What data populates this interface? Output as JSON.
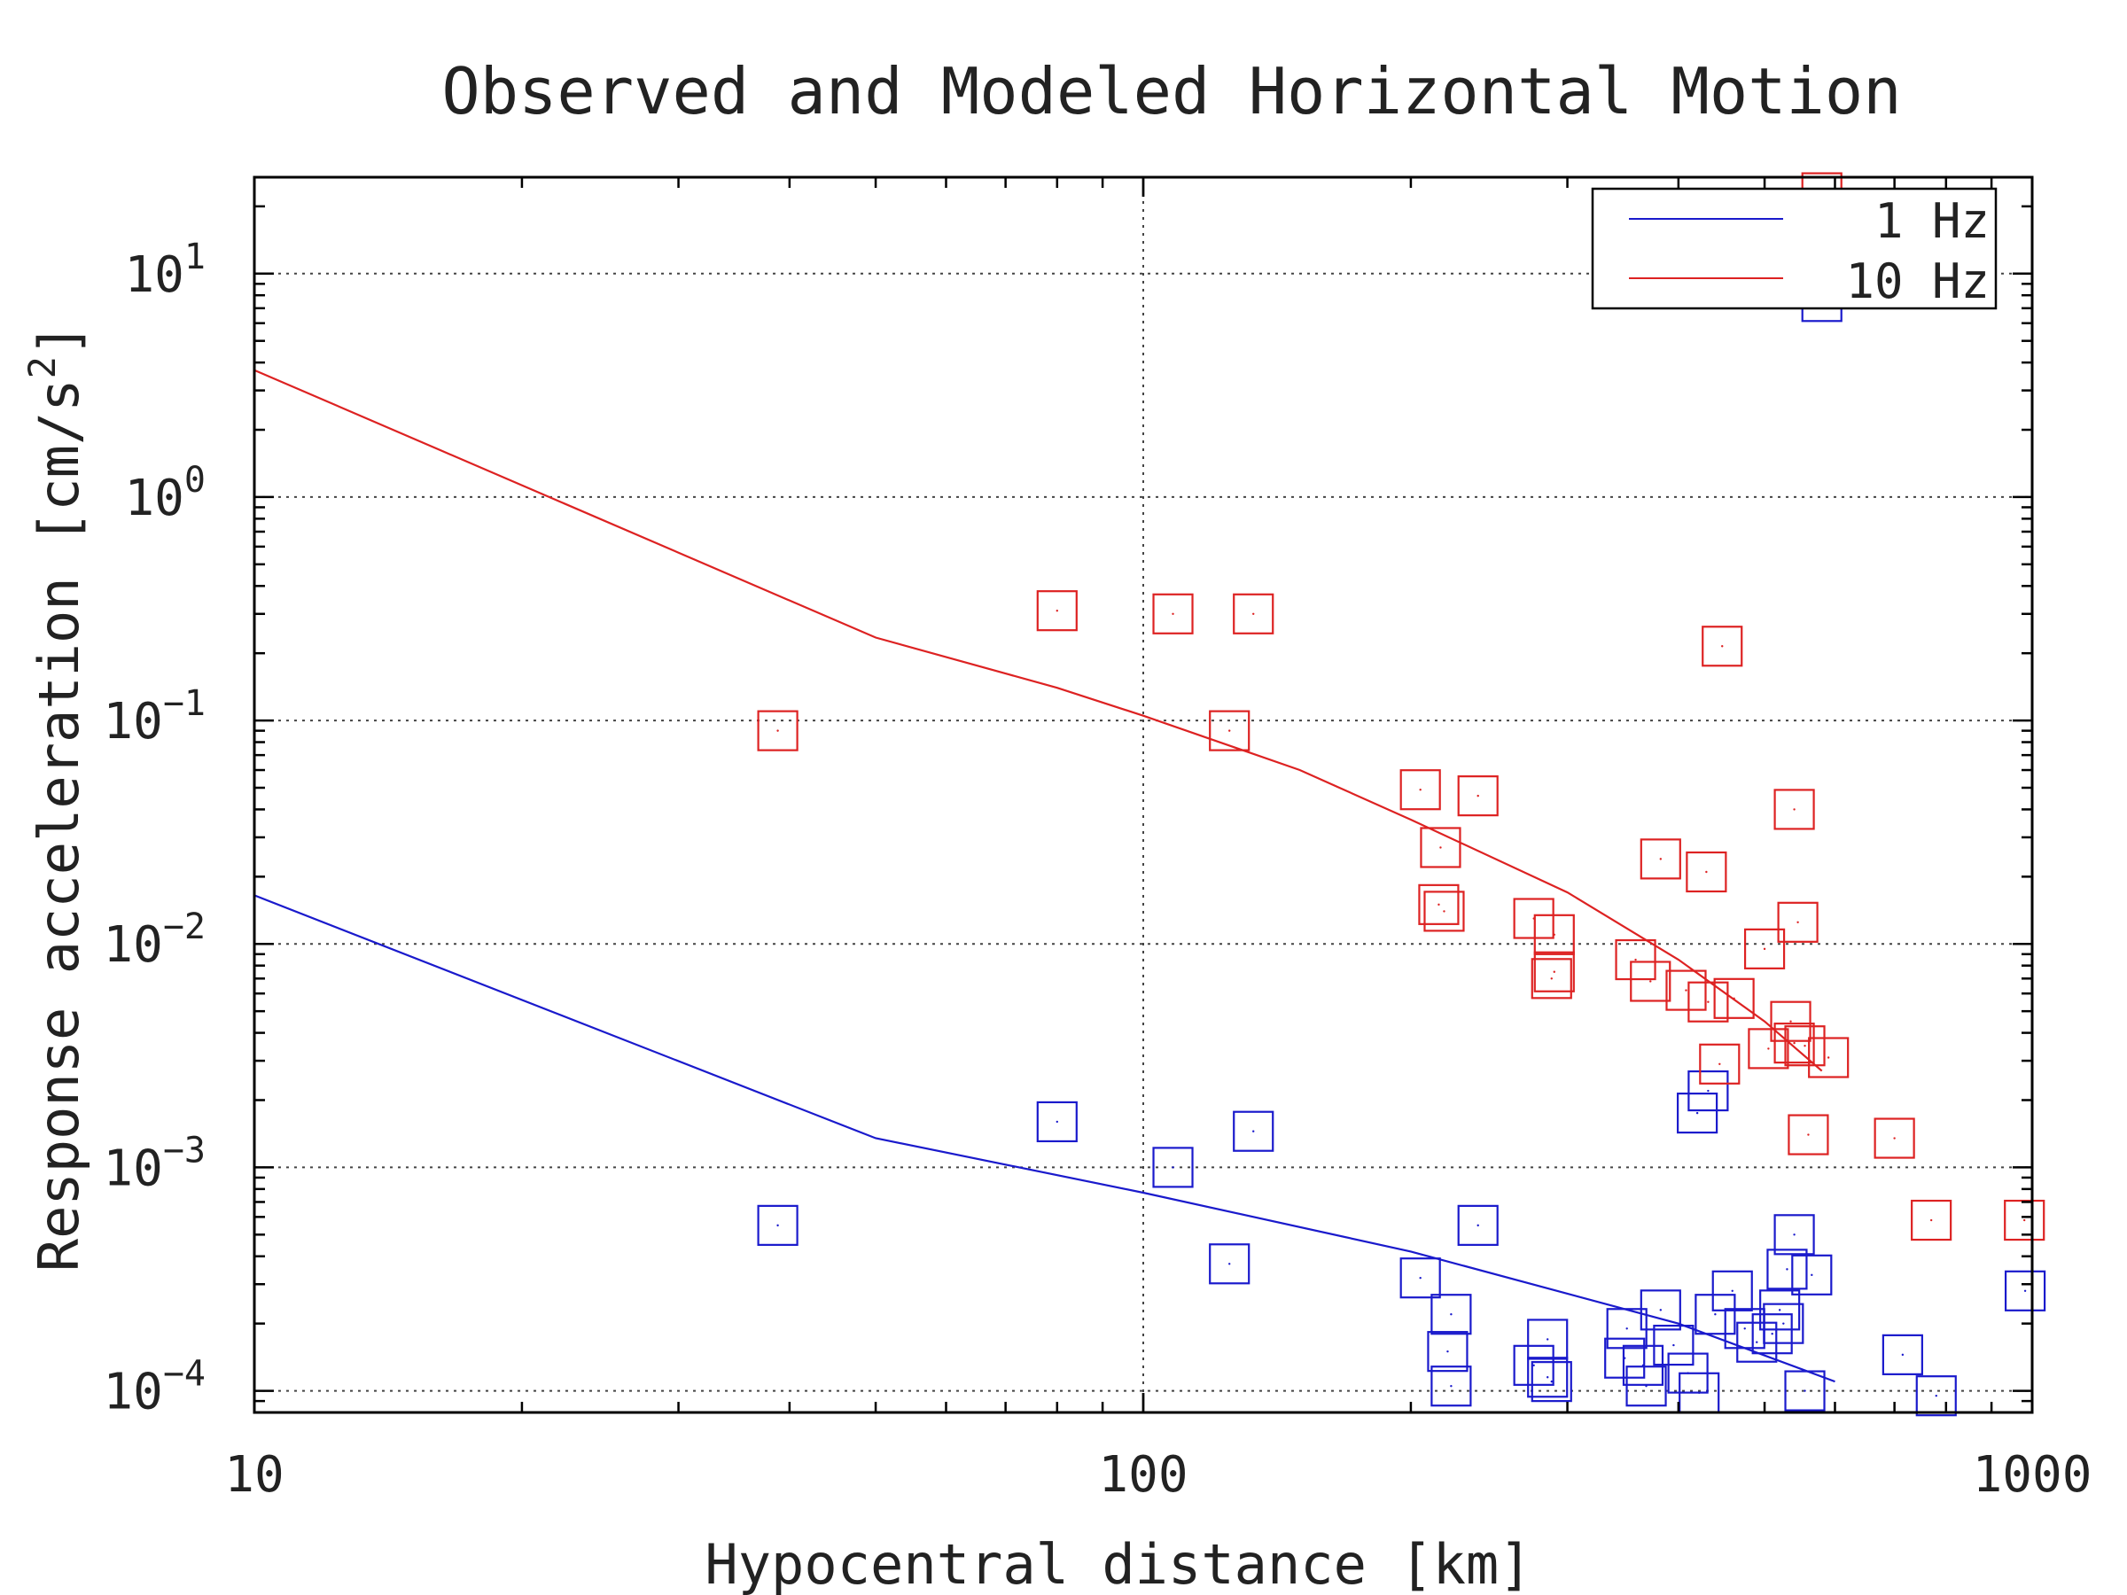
{
  "chart_data": {
    "type": "scatter",
    "title": "Observed and Modeled Horizontal Motion",
    "xlabel": "Hypocentral distance [km]",
    "ylabel": "Response acceleration [cm/s",
    "ylabel_superscript": "2",
    "ylabel_suffix": "]",
    "xscale": "log",
    "yscale": "log",
    "xlim": [
      10,
      1000
    ],
    "ylim": [
      8e-05,
      27
    ],
    "x_ticks": [
      {
        "value": 10,
        "label": "10"
      },
      {
        "value": 100,
        "label": "100"
      },
      {
        "value": 1000,
        "label": "1000"
      }
    ],
    "y_ticks": [
      {
        "value": 0.0001,
        "base": "10",
        "exp": "−4"
      },
      {
        "value": 0.001,
        "base": "10",
        "exp": "−3"
      },
      {
        "value": 0.01,
        "base": "10",
        "exp": "−2"
      },
      {
        "value": 0.1,
        "base": "10",
        "exp": "−1"
      },
      {
        "value": 1,
        "base": "10",
        "exp": "0"
      },
      {
        "value": 10,
        "base": "10",
        "exp": "1"
      }
    ],
    "grid": true,
    "legend_position": "top-right",
    "series": [
      {
        "name": "1 Hz",
        "color": "#1a1acc",
        "model_line": [
          [
            10,
            0.0165
          ],
          [
            50,
            0.00135
          ],
          [
            100,
            0.00077
          ],
          [
            200,
            0.00042
          ],
          [
            400,
            0.0002
          ],
          [
            600,
            0.00011
          ]
        ],
        "observations": [
          [
            38.8,
            0.00055
          ],
          [
            80,
            0.0016
          ],
          [
            108,
            0.001
          ],
          [
            133,
            0.00145
          ],
          [
            125,
            0.00037
          ],
          [
            238,
            0.00055
          ],
          [
            205,
            0.00032
          ],
          [
            222,
            0.00022
          ],
          [
            220,
            0.00015
          ],
          [
            222,
            0.000105
          ],
          [
            275,
            0.00013
          ],
          [
            285,
            0.00017
          ],
          [
            285,
            0.000115
          ],
          [
            288,
            0.00011
          ],
          [
            350,
            0.00019
          ],
          [
            348,
            0.00014
          ],
          [
            365,
            0.00013
          ],
          [
            368,
            0.000105
          ],
          [
            382,
            0.00023
          ],
          [
            395,
            0.00016
          ],
          [
            410,
            0.00012
          ],
          [
            422,
            9.8e-05
          ],
          [
            420,
            0.00175
          ],
          [
            432,
            0.0022
          ],
          [
            440,
            0.00022
          ],
          [
            460,
            0.00028
          ],
          [
            475,
            0.00019
          ],
          [
            490,
            0.000165
          ],
          [
            510,
            0.00018
          ],
          [
            520,
            0.00023
          ],
          [
            525,
            0.0002
          ],
          [
            530,
            0.00035
          ],
          [
            540,
            0.0005
          ],
          [
            565,
            0.00033
          ],
          [
            555,
            0.0001
          ],
          [
            715,
            0.000145
          ],
          [
            780,
            9.5e-05
          ],
          [
            982,
            0.00028
          ],
          [
            580,
            7.5
          ]
        ]
      },
      {
        "name": "10 Hz",
        "color": "#dd2222",
        "model_line": [
          [
            10,
            3.7
          ],
          [
            50,
            0.235
          ],
          [
            80,
            0.14
          ],
          [
            100,
            0.105
          ],
          [
            150,
            0.06
          ],
          [
            200,
            0.036
          ],
          [
            300,
            0.017
          ],
          [
            400,
            0.0085
          ],
          [
            500,
            0.0045
          ],
          [
            580,
            0.0027
          ]
        ],
        "observations": [
          [
            38.8,
            0.09
          ],
          [
            80,
            0.31
          ],
          [
            108,
            0.3
          ],
          [
            133,
            0.3
          ],
          [
            125,
            0.09
          ],
          [
            205,
            0.049
          ],
          [
            238,
            0.046
          ],
          [
            216,
            0.027
          ],
          [
            215,
            0.015
          ],
          [
            218,
            0.014
          ],
          [
            275,
            0.013
          ],
          [
            290,
            0.011
          ],
          [
            290,
            0.0075
          ],
          [
            288,
            0.007
          ],
          [
            358,
            0.0085
          ],
          [
            372,
            0.0068
          ],
          [
            382,
            0.024
          ],
          [
            408,
            0.0062
          ],
          [
            430,
            0.021
          ],
          [
            432,
            0.0055
          ],
          [
            462,
            0.0057
          ],
          [
            445,
            0.0029
          ],
          [
            448,
            0.215
          ],
          [
            500,
            0.0095
          ],
          [
            505,
            0.0034
          ],
          [
            540,
            0.0036
          ],
          [
            535,
            0.0045
          ],
          [
            540,
            0.04
          ],
          [
            545,
            0.0125
          ],
          [
            555,
            0.0035
          ],
          [
            590,
            0.0031
          ],
          [
            560,
            0.0014
          ],
          [
            700,
            0.00135
          ],
          [
            770,
            0.00058
          ],
          [
            980,
            0.00058
          ],
          [
            580,
            23
          ]
        ]
      }
    ]
  }
}
